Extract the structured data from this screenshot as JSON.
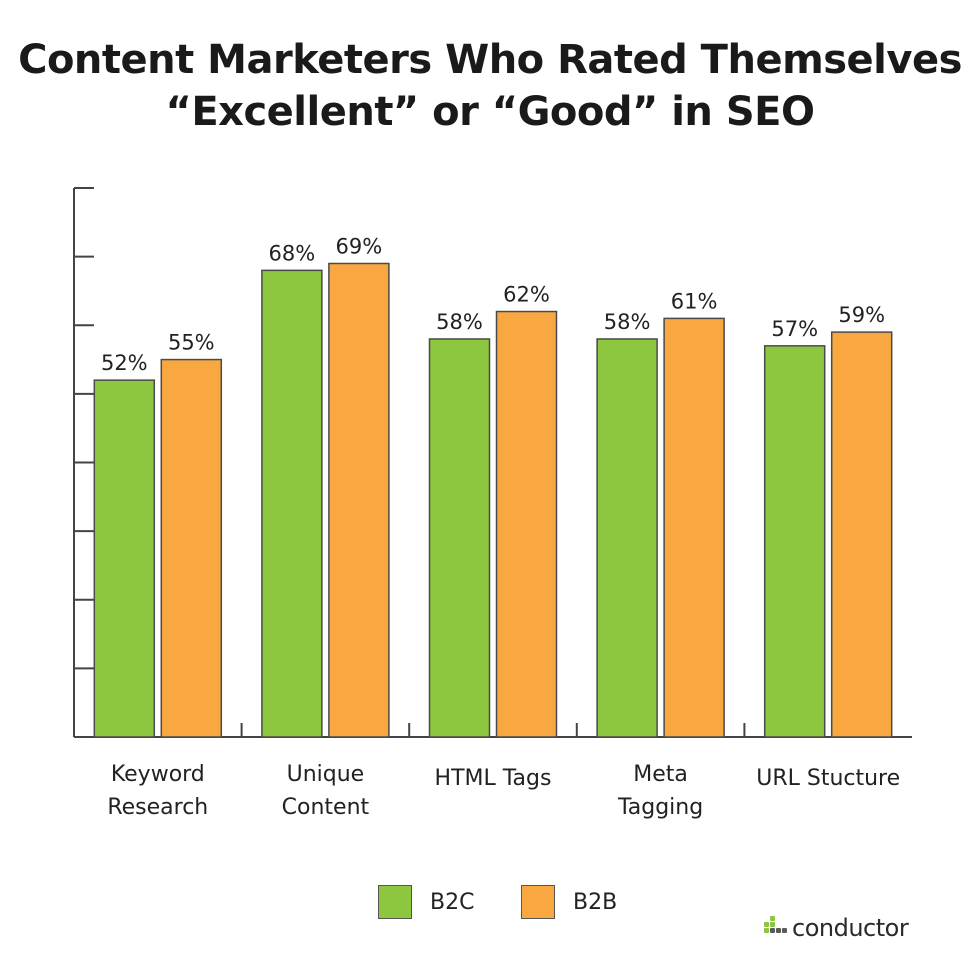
{
  "title_line1": "Content Marketers Who Rated Themselves",
  "title_line2": "“Excellent” or “Good” in SEO",
  "colors": {
    "b2c": "#8dc63f",
    "b2b": "#f9a841",
    "axis": "#444444"
  },
  "logo": {
    "text": "conductor",
    "icon": "conductor-dots-icon"
  },
  "legend": [
    {
      "label": "B2C",
      "color": "#8dc63f"
    },
    {
      "label": "B2B",
      "color": "#f9a841"
    }
  ],
  "chart_data": {
    "type": "bar",
    "title": "Content Marketers Who Rated Themselves “Excellent” or “Good” in SEO",
    "categories": [
      [
        "Keyword",
        "Research"
      ],
      [
        "Unique",
        "Content"
      ],
      [
        "HTML Tags"
      ],
      [
        "Meta",
        "Tagging"
      ],
      [
        "URL Stucture"
      ]
    ],
    "series": [
      {
        "name": "B2C",
        "values": [
          52,
          68,
          58,
          58,
          57
        ],
        "labels": [
          "52%",
          "68%",
          "58%",
          "58%",
          "57%"
        ]
      },
      {
        "name": "B2B",
        "values": [
          55,
          69,
          62,
          61,
          59
        ],
        "labels": [
          "55%",
          "69%",
          "62%",
          "61%",
          "59%"
        ]
      }
    ],
    "ylim": [
      0,
      80
    ],
    "y_tick_step": 10,
    "y_tick_labels_shown": false,
    "grid": false,
    "legend_position": "bottom-center"
  }
}
